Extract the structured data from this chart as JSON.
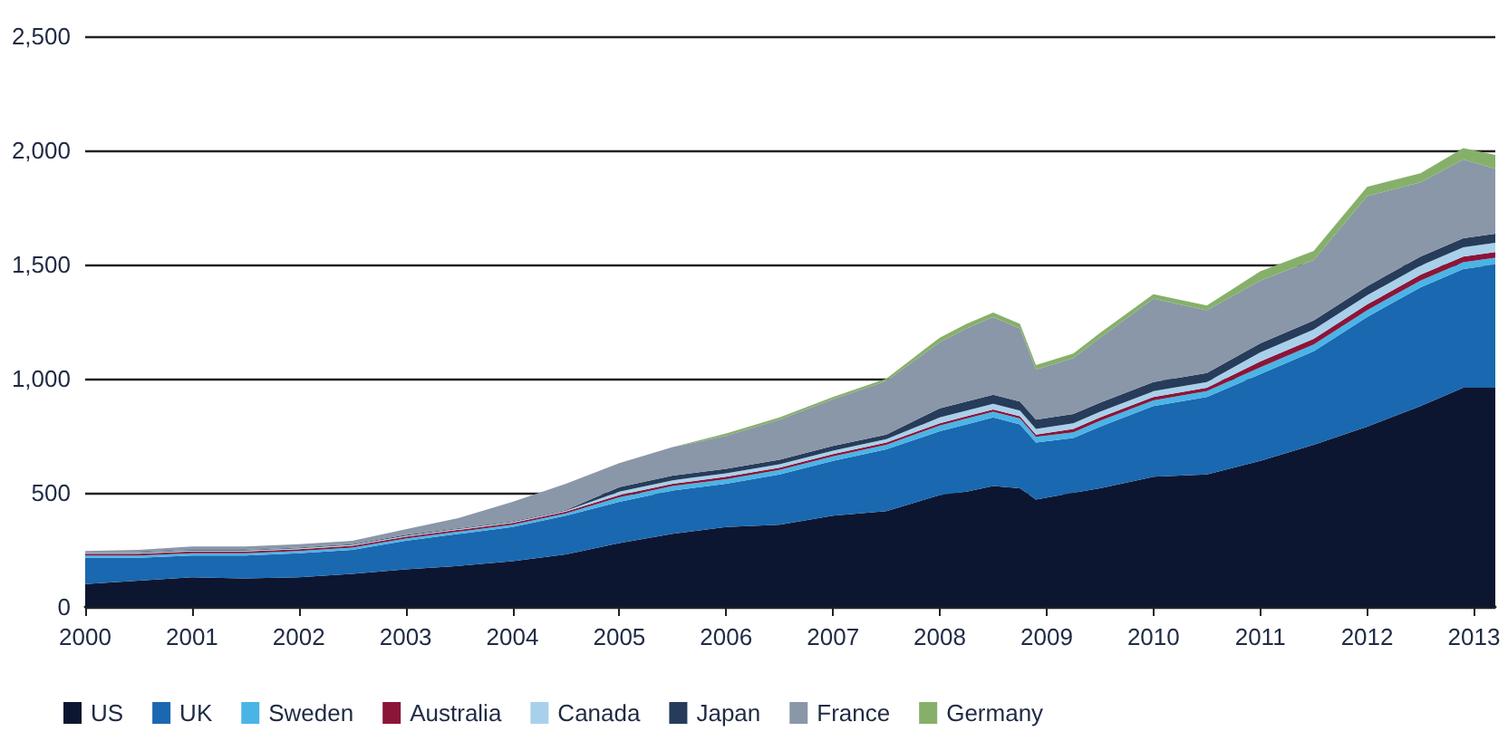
{
  "chart_data": {
    "type": "area",
    "stacked": true,
    "legend": "bottom left",
    "grid": "y",
    "x": [
      2000,
      2000.5,
      2001,
      2001.5,
      2002,
      2002.5,
      2003,
      2003.5,
      2004,
      2004.5,
      2005,
      2005.5,
      2006,
      2006.5,
      2007,
      2007.5,
      2008,
      2008.25,
      2008.5,
      2008.75,
      2008.9,
      2009.25,
      2009.5,
      2010,
      2010.5,
      2011,
      2011.5,
      2012,
      2012.5,
      2012.9,
      2013.2
    ],
    "xlim": [
      2000,
      2013.2
    ],
    "xticks": [
      2000,
      2001,
      2002,
      2003,
      2004,
      2005,
      2006,
      2007,
      2008,
      2009,
      2010,
      2011,
      2012,
      2013
    ],
    "ylim": [
      0,
      2500
    ],
    "yticks": [
      {
        "value": 0,
        "label": "0"
      },
      {
        "value": 500,
        "label": "500"
      },
      {
        "value": 1000,
        "label": "1,000"
      },
      {
        "value": 1500,
        "label": "1,500"
      },
      {
        "value": 2000,
        "label": "2,000"
      },
      {
        "value": 2500,
        "label": "2,500"
      }
    ],
    "series": [
      {
        "name": "US",
        "color": "#0d1630",
        "values": [
          100,
          115,
          130,
          125,
          130,
          145,
          165,
          180,
          200,
          230,
          280,
          320,
          350,
          360,
          400,
          420,
          490,
          505,
          530,
          520,
          470,
          500,
          520,
          570,
          580,
          640,
          710,
          790,
          880,
          960,
          960
        ]
      },
      {
        "name": "UK",
        "color": "#1a68b0",
        "values": [
          115,
          100,
          95,
          100,
          105,
          105,
          125,
          140,
          150,
          170,
          180,
          190,
          190,
          220,
          240,
          270,
          280,
          295,
          300,
          280,
          250,
          240,
          270,
          310,
          340,
          380,
          410,
          480,
          520,
          520,
          540
        ]
      },
      {
        "name": "Sweden",
        "color": "#4ab4e6",
        "values": [
          10,
          10,
          10,
          10,
          10,
          10,
          10,
          10,
          10,
          10,
          20,
          20,
          20,
          20,
          20,
          20,
          25,
          25,
          25,
          25,
          25,
          25,
          25,
          25,
          25,
          30,
          30,
          30,
          30,
          30,
          30
        ]
      },
      {
        "name": "Australia",
        "color": "#8b1538",
        "values": [
          8,
          8,
          8,
          8,
          8,
          8,
          8,
          8,
          8,
          8,
          10,
          10,
          10,
          10,
          10,
          10,
          10,
          10,
          10,
          10,
          10,
          15,
          15,
          15,
          15,
          25,
          25,
          25,
          25,
          25,
          25
        ]
      },
      {
        "name": "Canada",
        "color": "#a9d0ea",
        "values": [
          4,
          4,
          4,
          4,
          4,
          4,
          4,
          4,
          4,
          4,
          15,
          15,
          15,
          15,
          15,
          15,
          25,
          25,
          25,
          25,
          25,
          25,
          25,
          25,
          25,
          40,
          40,
          40,
          40,
          40,
          40
        ]
      },
      {
        "name": "Japan",
        "color": "#263c5a",
        "values": [
          3,
          3,
          3,
          3,
          3,
          3,
          3,
          3,
          3,
          3,
          20,
          20,
          20,
          20,
          20,
          20,
          40,
          40,
          40,
          40,
          40,
          40,
          40,
          40,
          40,
          40,
          40,
          40,
          40,
          40,
          40
        ]
      },
      {
        "name": "France",
        "color": "#8a97a8",
        "values": [
          5,
          10,
          15,
          15,
          15,
          15,
          25,
          45,
          85,
          115,
          105,
          125,
          145,
          175,
          205,
          235,
          290,
          320,
          340,
          320,
          220,
          245,
          285,
          365,
          275,
          275,
          265,
          395,
          325,
          345,
          285
        ]
      },
      {
        "name": "Germany",
        "color": "#86b06a",
        "values": [
          0,
          0,
          0,
          0,
          0,
          0,
          0,
          0,
          0,
          0,
          0,
          0,
          10,
          10,
          10,
          10,
          20,
          20,
          20,
          20,
          20,
          20,
          20,
          20,
          20,
          40,
          40,
          40,
          40,
          50,
          60
        ]
      }
    ]
  }
}
